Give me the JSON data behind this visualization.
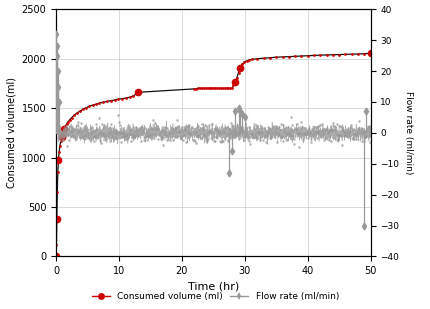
{
  "xlabel": "Time (hr)",
  "ylabel_left": "Consumed volume(ml)",
  "ylabel_right": "Flow rate (ml/min)",
  "xlim": [
    0,
    50
  ],
  "ylim_left": [
    0,
    2500
  ],
  "ylim_right": [
    -40,
    40
  ],
  "yticks_left": [
    0,
    500,
    1000,
    1500,
    2000,
    2500
  ],
  "yticks_right": [
    -40,
    -30,
    -20,
    -10,
    0,
    10,
    20,
    30,
    40
  ],
  "xticks": [
    0,
    10,
    20,
    30,
    40,
    50
  ],
  "legend_labels": [
    "Consumed volume (ml)",
    "Flow rate (ml/min)"
  ],
  "consumed_color": "#cc0000",
  "flowrate_color": "#999999",
  "line_color": "#111111",
  "background_color": "#ffffff",
  "grid_color": "#cccccc",
  "consumed_volume_time": [
    0,
    0.03,
    0.07,
    0.13,
    0.2,
    0.28,
    0.38,
    0.5,
    0.62,
    0.75,
    0.88,
    1.0,
    1.1,
    1.2,
    1.35,
    1.5,
    1.7,
    1.9,
    2.2,
    2.5,
    2.9,
    3.3,
    3.8,
    4.3,
    4.8,
    5.3,
    5.8,
    6.4,
    6.9,
    7.5,
    8.1,
    8.7,
    9.3,
    9.9,
    10.5,
    11.1,
    11.7,
    12.3,
    12.8,
    13.0,
    22.0,
    22.3,
    22.6,
    22.9,
    23.2,
    23.5,
    23.8,
    24.1,
    24.4,
    24.7,
    25.0,
    25.3,
    25.6,
    25.9,
    26.2,
    26.5,
    26.8,
    27.1,
    27.4,
    27.7,
    28.0,
    28.2,
    28.5,
    28.7,
    29.0,
    29.3,
    29.6,
    29.9,
    30.3,
    30.7,
    31.2,
    32.0,
    33.0,
    34.0,
    35.0,
    36.0,
    37.0,
    38.0,
    39.0,
    40.0,
    41.0,
    42.0,
    43.0,
    44.0,
    45.0,
    46.0,
    47.0,
    48.0,
    49.0,
    50.0
  ],
  "consumed_volume_value": [
    0,
    30,
    120,
    380,
    650,
    850,
    980,
    1060,
    1120,
    1170,
    1210,
    1240,
    1265,
    1285,
    1305,
    1320,
    1340,
    1360,
    1385,
    1405,
    1430,
    1450,
    1470,
    1490,
    1505,
    1518,
    1530,
    1540,
    1550,
    1560,
    1568,
    1575,
    1582,
    1590,
    1596,
    1602,
    1610,
    1625,
    1645,
    1660,
    1695,
    1698,
    1700,
    1700,
    1700,
    1700,
    1700,
    1700,
    1700,
    1700,
    1700,
    1700,
    1700,
    1700,
    1700,
    1700,
    1700,
    1700,
    1700,
    1700,
    1700,
    1730,
    1760,
    1800,
    1860,
    1910,
    1945,
    1965,
    1978,
    1987,
    1994,
    2000,
    2005,
    2010,
    2015,
    2018,
    2021,
    2024,
    2027,
    2030,
    2033,
    2036,
    2038,
    2040,
    2042,
    2044,
    2046,
    2048,
    2050,
    2055
  ],
  "key_dot_indices": [
    0,
    3,
    6,
    10,
    13,
    39,
    62,
    65,
    89
  ],
  "flow_spikes": [
    {
      "t": 0.05,
      "v": 32
    },
    {
      "t": 0.1,
      "v": 28
    },
    {
      "t": 0.17,
      "v": 25
    },
    {
      "t": 0.25,
      "v": 20
    },
    {
      "t": 0.32,
      "v": 15
    },
    {
      "t": 0.42,
      "v": 10
    },
    {
      "t": 27.5,
      "v": -13
    },
    {
      "t": 28.0,
      "v": -6
    },
    {
      "t": 28.5,
      "v": 7
    },
    {
      "t": 29.0,
      "v": 8
    },
    {
      "t": 29.3,
      "v": 7
    },
    {
      "t": 29.6,
      "v": 6
    },
    {
      "t": 30.0,
      "v": 5
    },
    {
      "t": 49.0,
      "v": -30
    },
    {
      "t": 49.3,
      "v": 7
    }
  ],
  "flow_base_noise_seed": 0,
  "flow_base_noise_std": 1.2
}
